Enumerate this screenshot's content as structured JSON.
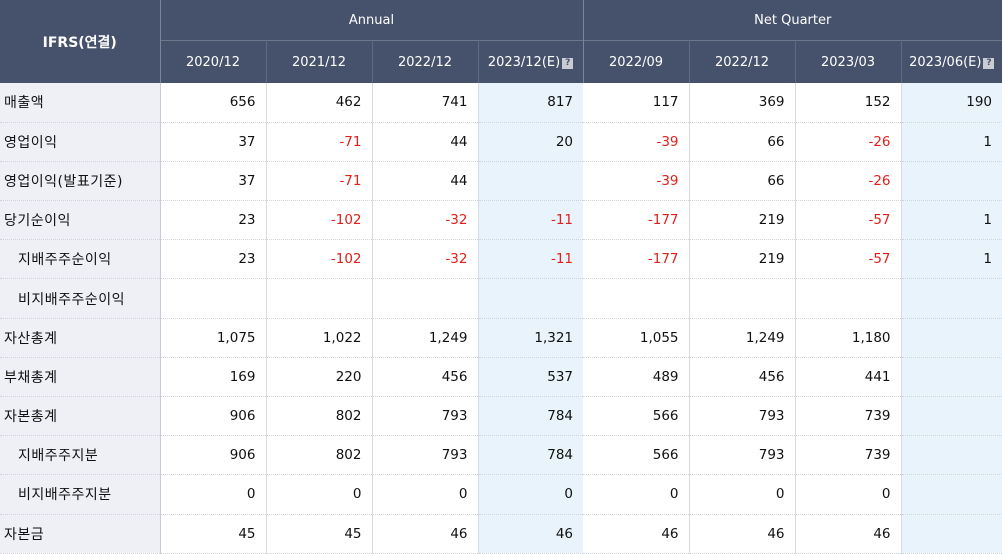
{
  "table": {
    "corner_label": "IFRS(연결)",
    "groups": {
      "annual": "Annual",
      "quarter": "Net Quarter"
    },
    "help_glyph": "?",
    "columns": [
      "2020/12",
      "2021/12",
      "2022/12",
      "2023/12(E)",
      "2022/09",
      "2022/12",
      "2023/03",
      "2023/06(E)"
    ],
    "rows": [
      {
        "label": "매출액",
        "values": [
          "656",
          "462",
          "741",
          "817",
          "117",
          "369",
          "152",
          "190"
        ]
      },
      {
        "label": "영업이익",
        "values": [
          "37",
          "-71",
          "44",
          "20",
          "-39",
          "66",
          "-26",
          "1"
        ]
      },
      {
        "label": "영업이익(발표기준)",
        "values": [
          "37",
          "-71",
          "44",
          "",
          "-39",
          "66",
          "-26",
          ""
        ]
      },
      {
        "label": "당기순이익",
        "values": [
          "23",
          "-102",
          "-32",
          "-11",
          "-177",
          "219",
          "-57",
          "1"
        ]
      },
      {
        "label": "지배주주순이익",
        "sub": true,
        "values": [
          "23",
          "-102",
          "-32",
          "-11",
          "-177",
          "219",
          "-57",
          "1"
        ]
      },
      {
        "label": "비지배주주순이익",
        "sub": true,
        "values": [
          "",
          "",
          "",
          "",
          "",
          "",
          "",
          ""
        ]
      },
      {
        "label": "자산총계",
        "values": [
          "1,075",
          "1,022",
          "1,249",
          "1,321",
          "1,055",
          "1,249",
          "1,180",
          ""
        ]
      },
      {
        "label": "부채총계",
        "values": [
          "169",
          "220",
          "456",
          "537",
          "489",
          "456",
          "441",
          ""
        ]
      },
      {
        "label": "자본총계",
        "values": [
          "906",
          "802",
          "793",
          "784",
          "566",
          "793",
          "739",
          ""
        ]
      },
      {
        "label": "지배주주지분",
        "sub": true,
        "values": [
          "906",
          "802",
          "793",
          "784",
          "566",
          "793",
          "739",
          ""
        ]
      },
      {
        "label": "비지배주주지분",
        "sub": true,
        "values": [
          "0",
          "0",
          "0",
          "0",
          "0",
          "0",
          "0",
          ""
        ]
      },
      {
        "label": "자본금",
        "values": [
          "45",
          "45",
          "46",
          "46",
          "46",
          "46",
          "46",
          ""
        ]
      }
    ]
  }
}
